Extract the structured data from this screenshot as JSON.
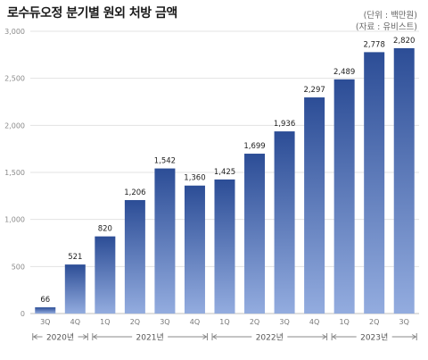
{
  "chart_data": {
    "type": "bar",
    "title": "로수듀오정 분기별 원외 처방 금액",
    "unit_note": "(단위 : 백만원)",
    "source_note": "(자료 : 유비스트)",
    "categories": [
      "3Q",
      "4Q",
      "1Q",
      "2Q",
      "3Q",
      "4Q",
      "1Q",
      "2Q",
      "3Q",
      "4Q",
      "1Q",
      "2Q",
      "3Q"
    ],
    "values": [
      66,
      521,
      820,
      1206,
      1542,
      1360,
      1425,
      1699,
      1936,
      2297,
      2489,
      2778,
      2820
    ],
    "data_labels": [
      "66",
      "521",
      "820",
      "1,206",
      "1,542",
      "1,360",
      "1,425",
      "1,699",
      "1,936",
      "2,297",
      "2,489",
      "2,778",
      "2,820"
    ],
    "year_groups": [
      {
        "label": "2020년",
        "start": 0,
        "end": 1
      },
      {
        "label": "2021년",
        "start": 2,
        "end": 5
      },
      {
        "label": "2022년",
        "start": 6,
        "end": 9
      },
      {
        "label": "2023년",
        "start": 10,
        "end": 12
      }
    ],
    "yticks": [
      0,
      500,
      1000,
      1500,
      2000,
      2500,
      3000
    ],
    "ytick_labels": [
      "0",
      "500",
      "1,000",
      "1,500",
      "2,000",
      "2,500",
      "3,000"
    ],
    "ylim": [
      0,
      3000
    ],
    "grid": true,
    "colors": {
      "bar_top": "#2c4d96",
      "bar_bottom": "#93acdf",
      "grid": "#e3e3e3"
    }
  }
}
